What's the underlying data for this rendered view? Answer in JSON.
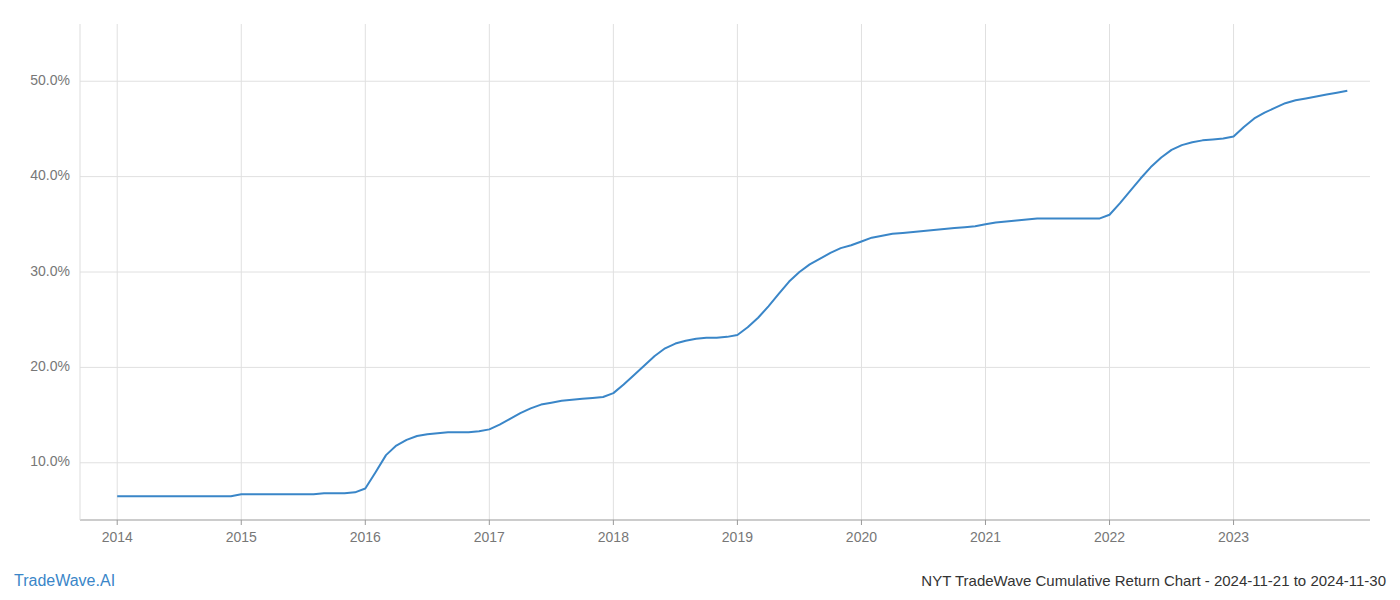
{
  "chart_data": {
    "type": "line",
    "title": "NYT TradeWave Cumulative Return Chart - 2024-11-21 to 2024-11-30",
    "annotations": [
      "TradeWave.AI"
    ],
    "color": "#3a86c8",
    "grid": true,
    "x": [
      2014.0,
      2014.083,
      2014.167,
      2014.25,
      2014.333,
      2014.417,
      2014.5,
      2014.583,
      2014.667,
      2014.75,
      2014.833,
      2014.917,
      2015.0,
      2015.083,
      2015.167,
      2015.25,
      2015.333,
      2015.417,
      2015.5,
      2015.583,
      2015.667,
      2015.75,
      2015.833,
      2015.917,
      2016.0,
      2016.083,
      2016.167,
      2016.25,
      2016.333,
      2016.417,
      2016.5,
      2016.583,
      2016.667,
      2016.75,
      2016.833,
      2016.917,
      2017.0,
      2017.083,
      2017.167,
      2017.25,
      2017.333,
      2017.417,
      2017.5,
      2017.583,
      2017.667,
      2017.75,
      2017.833,
      2017.917,
      2018.0,
      2018.083,
      2018.167,
      2018.25,
      2018.333,
      2018.417,
      2018.5,
      2018.583,
      2018.667,
      2018.75,
      2018.833,
      2018.917,
      2019.0,
      2019.083,
      2019.167,
      2019.25,
      2019.333,
      2019.417,
      2019.5,
      2019.583,
      2019.667,
      2019.75,
      2019.833,
      2019.917,
      2020.0,
      2020.083,
      2020.167,
      2020.25,
      2020.333,
      2020.417,
      2020.5,
      2020.583,
      2020.667,
      2020.75,
      2020.833,
      2020.917,
      2021.0,
      2021.083,
      2021.167,
      2021.25,
      2021.333,
      2021.417,
      2021.5,
      2021.583,
      2021.667,
      2021.75,
      2021.833,
      2021.917,
      2022.0,
      2022.083,
      2022.167,
      2022.25,
      2022.333,
      2022.417,
      2022.5,
      2022.583,
      2022.667,
      2022.75,
      2022.833,
      2022.917,
      2023.0,
      2023.083,
      2023.167,
      2023.25,
      2023.333,
      2023.417,
      2023.5,
      2023.583,
      2023.667,
      2023.75,
      2023.833,
      2023.917
    ],
    "values": [
      0.065,
      0.065,
      0.065,
      0.065,
      0.065,
      0.065,
      0.065,
      0.065,
      0.065,
      0.065,
      0.065,
      0.065,
      0.067,
      0.067,
      0.067,
      0.067,
      0.067,
      0.067,
      0.067,
      0.067,
      0.068,
      0.068,
      0.068,
      0.069,
      0.073,
      0.09,
      0.108,
      0.118,
      0.124,
      0.128,
      0.13,
      0.131,
      0.132,
      0.132,
      0.132,
      0.133,
      0.135,
      0.14,
      0.146,
      0.152,
      0.157,
      0.161,
      0.163,
      0.165,
      0.166,
      0.167,
      0.168,
      0.169,
      0.173,
      0.182,
      0.192,
      0.202,
      0.212,
      0.22,
      0.225,
      0.228,
      0.23,
      0.231,
      0.231,
      0.232,
      0.234,
      0.242,
      0.252,
      0.264,
      0.277,
      0.29,
      0.3,
      0.308,
      0.314,
      0.32,
      0.325,
      0.328,
      0.332,
      0.336,
      0.338,
      0.34,
      0.341,
      0.342,
      0.343,
      0.344,
      0.345,
      0.346,
      0.347,
      0.348,
      0.35,
      0.352,
      0.353,
      0.354,
      0.355,
      0.356,
      0.356,
      0.356,
      0.356,
      0.356,
      0.356,
      0.356,
      0.36,
      0.372,
      0.385,
      0.398,
      0.41,
      0.42,
      0.428,
      0.433,
      0.436,
      0.438,
      0.439,
      0.44,
      0.442,
      0.452,
      0.461,
      0.467,
      0.472,
      0.477,
      0.48,
      0.482,
      0.484,
      0.486,
      0.488,
      0.49
    ],
    "xlim": [
      2013.7,
      2024.1
    ],
    "ylim": [
      0.04,
      0.56
    ],
    "xticks": [
      2014,
      2015,
      2016,
      2017,
      2018,
      2019,
      2020,
      2021,
      2022,
      2023
    ],
    "yticks": [
      {
        "value": 0.1,
        "label": "10.0%"
      },
      {
        "value": 0.2,
        "label": "20.0%"
      },
      {
        "value": 0.3,
        "label": "30.0%"
      },
      {
        "value": 0.4,
        "label": "40.0%"
      },
      {
        "value": 0.5,
        "label": "50.0%"
      }
    ]
  }
}
